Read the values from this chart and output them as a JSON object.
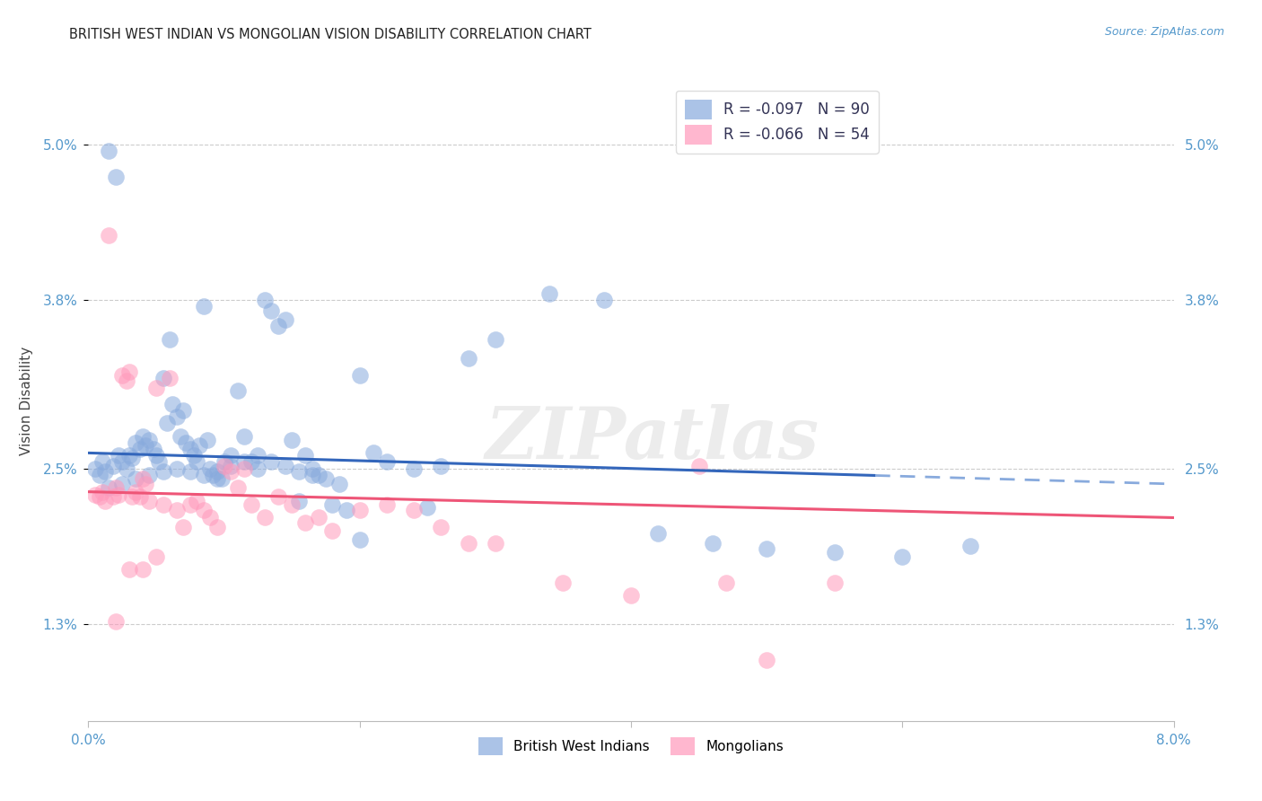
{
  "title": "BRITISH WEST INDIAN VS MONGOLIAN VISION DISABILITY CORRELATION CHART",
  "source": "Source: ZipAtlas.com",
  "ylabel": "Vision Disability",
  "yticks": [
    1.3,
    2.5,
    3.8,
    5.0
  ],
  "ytick_labels": [
    "1.3%",
    "2.5%",
    "3.8%",
    "5.0%"
  ],
  "xlim": [
    0.0,
    8.0
  ],
  "ylim": [
    0.55,
    5.5
  ],
  "blue_R": "-0.097",
  "blue_N": "90",
  "pink_R": "-0.066",
  "pink_N": "54",
  "blue_color": "#88AADD",
  "pink_color": "#FF99BB",
  "blue_line_color": "#3366BB",
  "pink_line_color": "#EE5577",
  "watermark": "ZIPatlas",
  "blue_scatter_x": [
    0.05,
    0.08,
    0.1,
    0.12,
    0.15,
    0.18,
    0.2,
    0.22,
    0.25,
    0.28,
    0.3,
    0.32,
    0.35,
    0.38,
    0.4,
    0.42,
    0.45,
    0.48,
    0.5,
    0.52,
    0.55,
    0.58,
    0.6,
    0.62,
    0.65,
    0.68,
    0.7,
    0.72,
    0.75,
    0.78,
    0.8,
    0.82,
    0.85,
    0.88,
    0.9,
    0.92,
    0.95,
    0.98,
    1.0,
    1.05,
    1.1,
    1.15,
    1.2,
    1.25,
    1.3,
    1.35,
    1.4,
    1.45,
    1.5,
    1.55,
    1.6,
    1.65,
    1.7,
    1.8,
    1.9,
    2.0,
    2.1,
    2.2,
    2.4,
    2.6,
    2.8,
    3.0,
    3.4,
    3.8,
    4.2,
    4.6,
    5.0,
    5.5,
    6.0,
    6.5,
    0.15,
    0.25,
    0.35,
    0.45,
    0.55,
    0.65,
    0.75,
    0.85,
    0.95,
    1.05,
    1.15,
    1.25,
    1.35,
    1.45,
    1.55,
    1.65,
    1.75,
    1.85,
    2.0,
    2.5
  ],
  "blue_scatter_y": [
    2.5,
    2.45,
    2.55,
    2.48,
    4.95,
    2.52,
    4.75,
    2.6,
    2.55,
    2.5,
    2.6,
    2.58,
    2.7,
    2.65,
    2.75,
    2.68,
    2.72,
    2.65,
    2.6,
    2.55,
    3.2,
    2.85,
    3.5,
    3.0,
    2.9,
    2.75,
    2.95,
    2.7,
    2.65,
    2.6,
    2.55,
    2.68,
    3.75,
    2.72,
    2.5,
    2.45,
    2.48,
    2.42,
    2.55,
    2.6,
    3.1,
    2.75,
    2.55,
    2.5,
    3.8,
    3.72,
    3.6,
    3.65,
    2.72,
    2.25,
    2.6,
    2.5,
    2.45,
    2.22,
    2.18,
    3.22,
    2.62,
    2.55,
    2.5,
    2.52,
    3.35,
    3.5,
    3.85,
    3.8,
    2.0,
    1.92,
    1.88,
    1.85,
    1.82,
    1.9,
    2.35,
    2.38,
    2.42,
    2.45,
    2.48,
    2.5,
    2.48,
    2.45,
    2.42,
    2.52,
    2.55,
    2.6,
    2.55,
    2.52,
    2.48,
    2.45,
    2.42,
    2.38,
    1.95,
    2.2
  ],
  "pink_scatter_x": [
    0.05,
    0.08,
    0.1,
    0.12,
    0.15,
    0.18,
    0.2,
    0.22,
    0.25,
    0.28,
    0.3,
    0.32,
    0.35,
    0.38,
    0.4,
    0.42,
    0.45,
    0.5,
    0.55,
    0.6,
    0.65,
    0.7,
    0.75,
    0.8,
    0.85,
    0.9,
    0.95,
    1.0,
    1.05,
    1.1,
    1.15,
    1.2,
    1.3,
    1.4,
    1.5,
    1.6,
    1.7,
    1.8,
    2.0,
    2.2,
    2.4,
    2.6,
    2.8,
    3.0,
    3.5,
    4.0,
    4.5,
    5.0,
    5.5,
    4.7,
    0.2,
    0.3,
    0.4,
    0.5
  ],
  "pink_scatter_y": [
    2.3,
    2.28,
    2.32,
    2.25,
    4.3,
    2.28,
    2.35,
    2.3,
    3.22,
    3.18,
    3.25,
    2.28,
    2.32,
    2.28,
    2.42,
    2.38,
    2.25,
    3.12,
    2.22,
    3.2,
    2.18,
    2.05,
    2.22,
    2.25,
    2.18,
    2.12,
    2.05,
    2.52,
    2.48,
    2.35,
    2.5,
    2.22,
    2.12,
    2.28,
    2.22,
    2.08,
    2.12,
    2.02,
    2.18,
    2.22,
    2.18,
    2.05,
    1.92,
    1.92,
    1.62,
    1.52,
    2.52,
    1.02,
    1.62,
    1.62,
    1.32,
    1.72,
    1.72,
    1.82
  ],
  "blue_line_x0": 0.0,
  "blue_line_x_solid_end": 5.8,
  "blue_line_x_end": 8.0,
  "blue_line_y_start": 2.62,
  "blue_line_y_end": 2.38,
  "pink_line_y_start": 2.32,
  "pink_line_y_end": 2.12
}
